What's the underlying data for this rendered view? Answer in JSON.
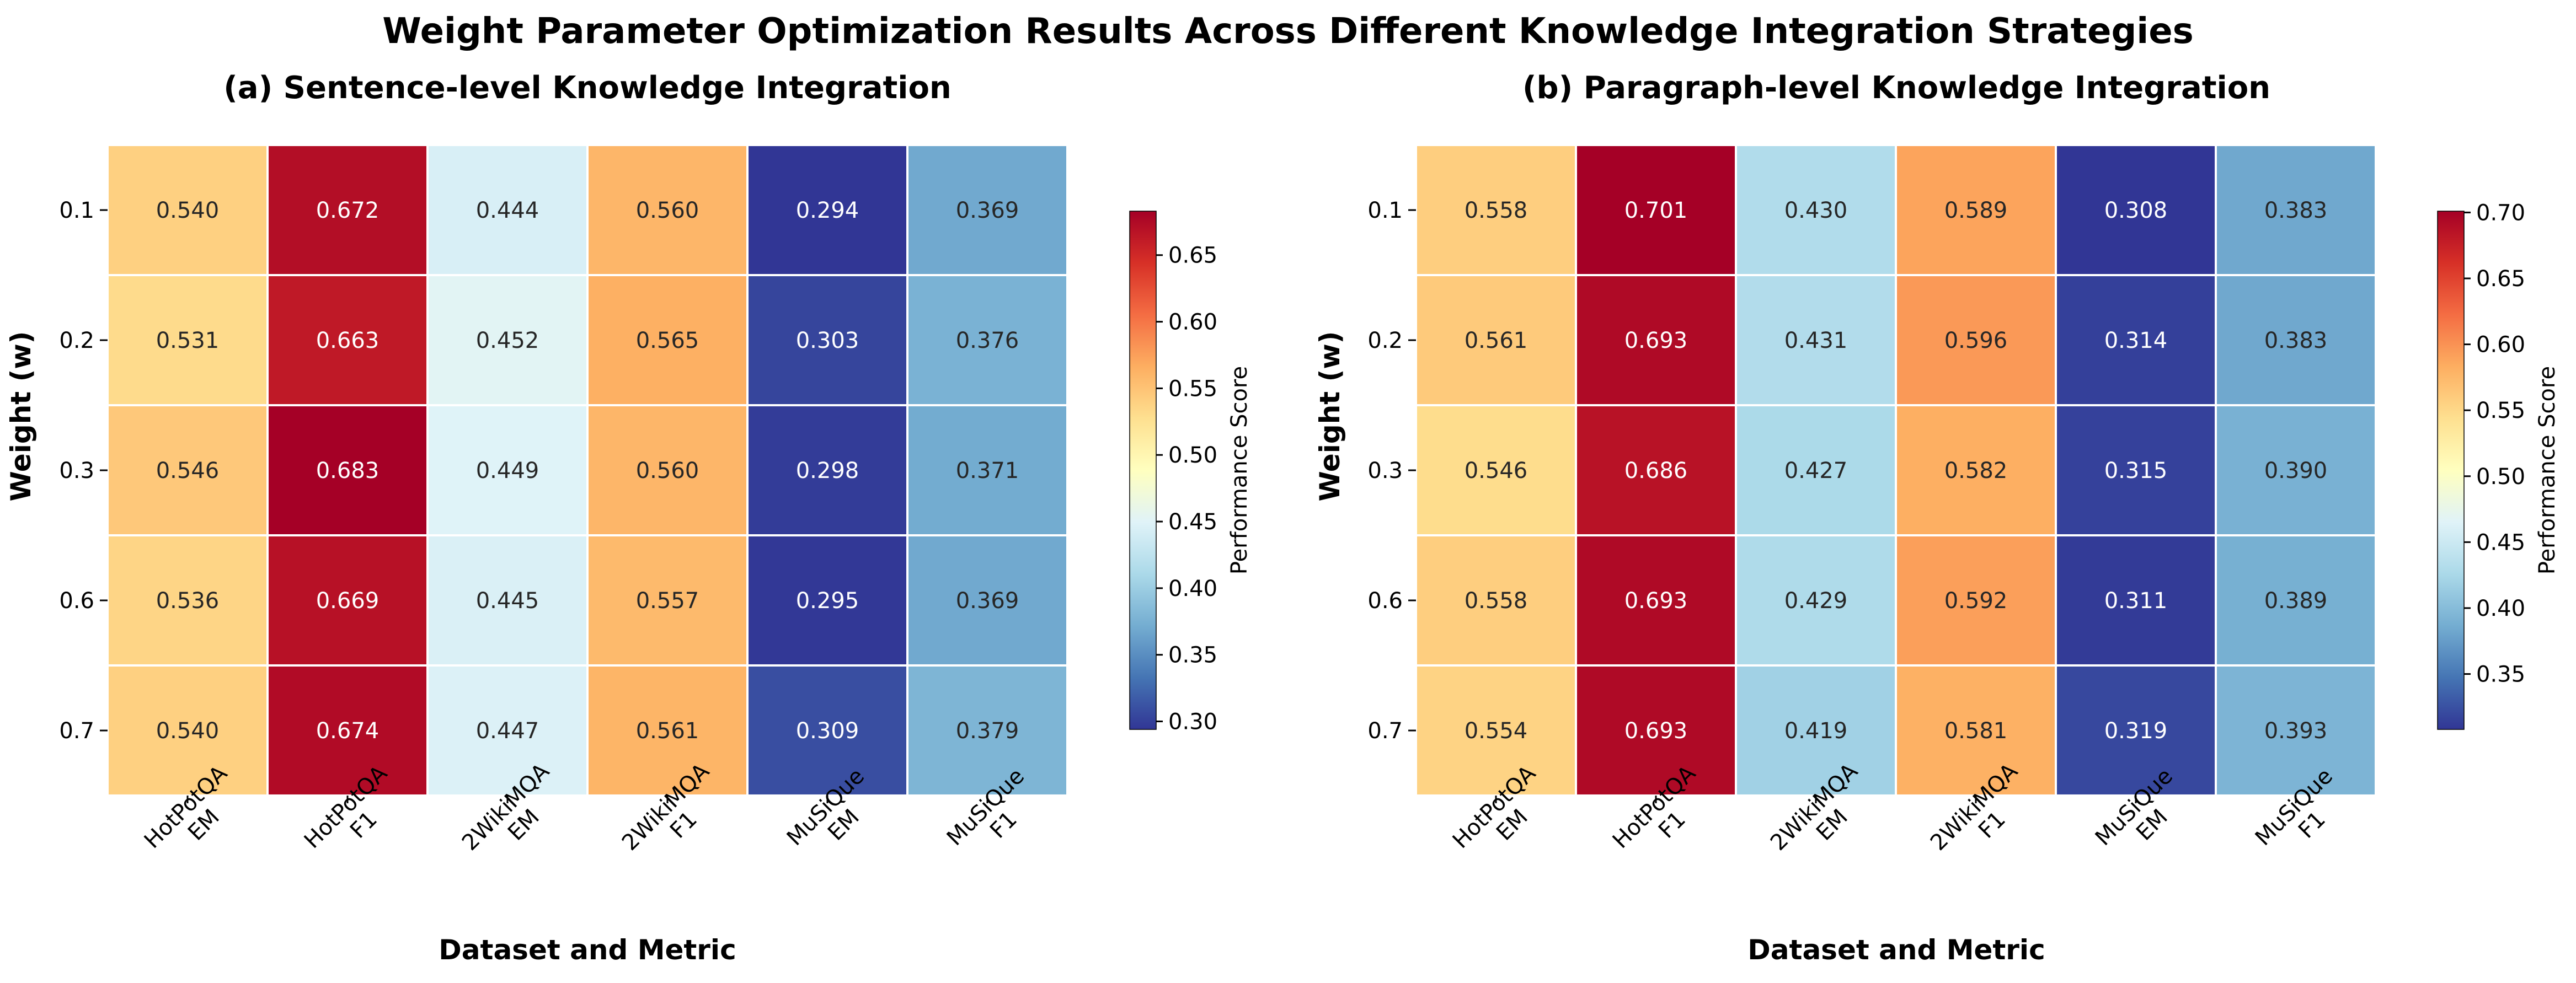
{
  "figure": {
    "title": "Weight Parameter Optimization Results Across Different Knowledge Integration Strategies"
  },
  "chart_data": [
    {
      "type": "heatmap",
      "title": "(a) Sentence-level Knowledge Integration",
      "xlabel": "Dataset and Metric",
      "ylabel": "Weight (w)",
      "x_categories": [
        [
          "HotPotQA",
          "EM"
        ],
        [
          "HotPotQA",
          "F1"
        ],
        [
          "2WikiMQA",
          "EM"
        ],
        [
          "2WikiMQA",
          "F1"
        ],
        [
          "MuSiQue",
          "EM"
        ],
        [
          "MuSiQue",
          "F1"
        ]
      ],
      "y_categories": [
        "0.1",
        "0.2",
        "0.3",
        "0.6",
        "0.7"
      ],
      "values": [
        [
          0.54,
          0.672,
          0.444,
          0.56,
          0.294,
          0.369
        ],
        [
          0.531,
          0.663,
          0.452,
          0.565,
          0.303,
          0.376
        ],
        [
          0.546,
          0.683,
          0.449,
          0.56,
          0.298,
          0.371
        ],
        [
          0.536,
          0.669,
          0.445,
          0.557,
          0.295,
          0.369
        ],
        [
          0.54,
          0.674,
          0.447,
          0.561,
          0.309,
          0.379
        ]
      ],
      "colorbar": {
        "label": "Performance Score",
        "vmin": 0.294,
        "vmax": 0.683,
        "ticks": [
          "0.30",
          "0.35",
          "0.40",
          "0.45",
          "0.50",
          "0.55",
          "0.60",
          "0.65"
        ],
        "colormap": "RdYlBu_r"
      }
    },
    {
      "type": "heatmap",
      "title": "(b) Paragraph-level Knowledge Integration",
      "xlabel": "Dataset and Metric",
      "ylabel": "Weight (w)",
      "x_categories": [
        [
          "HotPotQA",
          "EM"
        ],
        [
          "HotPotQA",
          "F1"
        ],
        [
          "2WikiMQA",
          "EM"
        ],
        [
          "2WikiMQA",
          "F1"
        ],
        [
          "MuSiQue",
          "EM"
        ],
        [
          "MuSiQue",
          "F1"
        ]
      ],
      "y_categories": [
        "0.1",
        "0.2",
        "0.3",
        "0.6",
        "0.7"
      ],
      "values": [
        [
          0.558,
          0.701,
          0.43,
          0.589,
          0.308,
          0.383
        ],
        [
          0.561,
          0.693,
          0.431,
          0.596,
          0.314,
          0.383
        ],
        [
          0.546,
          0.686,
          0.427,
          0.582,
          0.315,
          0.39
        ],
        [
          0.558,
          0.693,
          0.429,
          0.592,
          0.311,
          0.389
        ],
        [
          0.554,
          0.693,
          0.419,
          0.581,
          0.319,
          0.393
        ]
      ],
      "colorbar": {
        "label": "Performance Score",
        "vmin": 0.308,
        "vmax": 0.701,
        "ticks": [
          "0.35",
          "0.40",
          "0.45",
          "0.50",
          "0.55",
          "0.60",
          "0.65",
          "0.70"
        ],
        "colormap": "RdYlBu_r"
      }
    }
  ]
}
